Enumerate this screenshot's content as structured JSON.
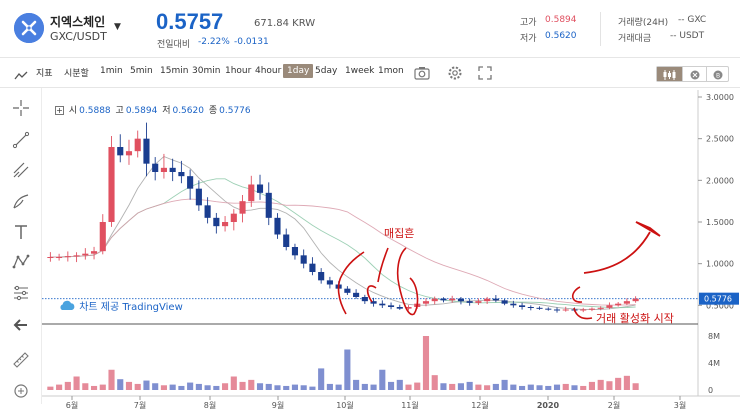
{
  "header": {
    "coin_name": "지엑스체인",
    "pair": "GXC/USDT",
    "price": "0.5757",
    "price_krw": "671.84 KRW",
    "change_label": "전일대비",
    "change_pct": "-2.22%",
    "change_abs": "-0.0131",
    "high_label": "고가",
    "high_value": "0.5894",
    "low_label": "저가",
    "low_value": "0.5620",
    "volume_label": "거래량(24H)",
    "volume_value": "-- GXC",
    "amount_label": "거래대금",
    "amount_value": "-- USDT"
  },
  "toolbar": {
    "indicator_label": "지표",
    "period_label": "시분할",
    "intervals": [
      "1min",
      "5min",
      "15min",
      "30min",
      "1hour",
      "4hour",
      "1day",
      "5day",
      "1week",
      "1mon"
    ],
    "active_interval": "1day"
  },
  "ohlc": {
    "open_label": "시",
    "open": "0.5888",
    "high_label": "고",
    "high": "0.5894",
    "low_label": "저",
    "low": "0.5620",
    "close_label": "종",
    "close": "0.5776"
  },
  "attribution": "차트 제공 TradingView",
  "annotations": {
    "accumulation": "매집흔",
    "activation": "거래 활성화 시작"
  },
  "colors": {
    "up": "#e05060",
    "down": "#1a3d8f",
    "accent": "#1b63c6",
    "annotation": "#cc1111"
  },
  "chart_data": [
    {
      "type": "candlestick",
      "title": "",
      "xlabel": "",
      "ylabel": "",
      "x_ticks": [
        "6월",
        "7월",
        "8월",
        "9월",
        "10월",
        "11월",
        "12월",
        "2020",
        "2월",
        "3월"
      ],
      "y_ticks": [
        "3.0000",
        "2.5000",
        "2.0000",
        "1.5000",
        "1.0000",
        "0.5000"
      ],
      "ylim": [
        0.3,
        3.0
      ],
      "last_price_label": "0.5776",
      "close_series": [
        1.08,
        1.08,
        1.09,
        1.1,
        1.12,
        1.15,
        1.5,
        2.4,
        2.3,
        2.35,
        2.5,
        2.2,
        2.1,
        2.15,
        2.1,
        2.05,
        1.9,
        1.7,
        1.55,
        1.45,
        1.5,
        1.6,
        1.75,
        1.95,
        1.85,
        1.55,
        1.35,
        1.2,
        1.1,
        1.0,
        0.9,
        0.8,
        0.75,
        0.7,
        0.65,
        0.6,
        0.55,
        0.52,
        0.5,
        0.48,
        0.46,
        0.48,
        0.52,
        0.55,
        0.58,
        0.56,
        0.58,
        0.55,
        0.53,
        0.55,
        0.58,
        0.56,
        0.52,
        0.5,
        0.48,
        0.47,
        0.46,
        0.45,
        0.44,
        0.45,
        0.44,
        0.45,
        0.46,
        0.47,
        0.5,
        0.52,
        0.55,
        0.58
      ]
    },
    {
      "type": "bar",
      "title": "",
      "y_ticks": [
        "8M",
        "4M",
        "0"
      ],
      "ylim": [
        0,
        8
      ],
      "values": [
        0.5,
        0.8,
        1.2,
        2.0,
        1.0,
        0.6,
        0.8,
        3.0,
        1.6,
        1.2,
        0.9,
        1.4,
        1.0,
        0.7,
        0.8,
        0.6,
        1.1,
        0.9,
        0.7,
        0.6,
        1.0,
        2.0,
        1.2,
        1.5,
        1.0,
        0.9,
        0.7,
        0.6,
        0.8,
        0.7,
        0.5,
        3.2,
        0.9,
        0.8,
        6.0,
        1.5,
        0.9,
        0.8,
        3.0,
        1.2,
        1.5,
        0.8,
        1.1,
        8.0,
        2.2,
        1.0,
        0.9,
        1.0,
        1.2,
        0.8,
        0.7,
        0.9,
        1.5,
        0.8,
        0.6,
        0.8,
        0.7,
        0.6,
        0.8,
        0.9,
        0.7,
        0.6,
        1.2,
        1.5,
        1.3,
        1.8,
        2.1,
        1.0
      ]
    }
  ]
}
